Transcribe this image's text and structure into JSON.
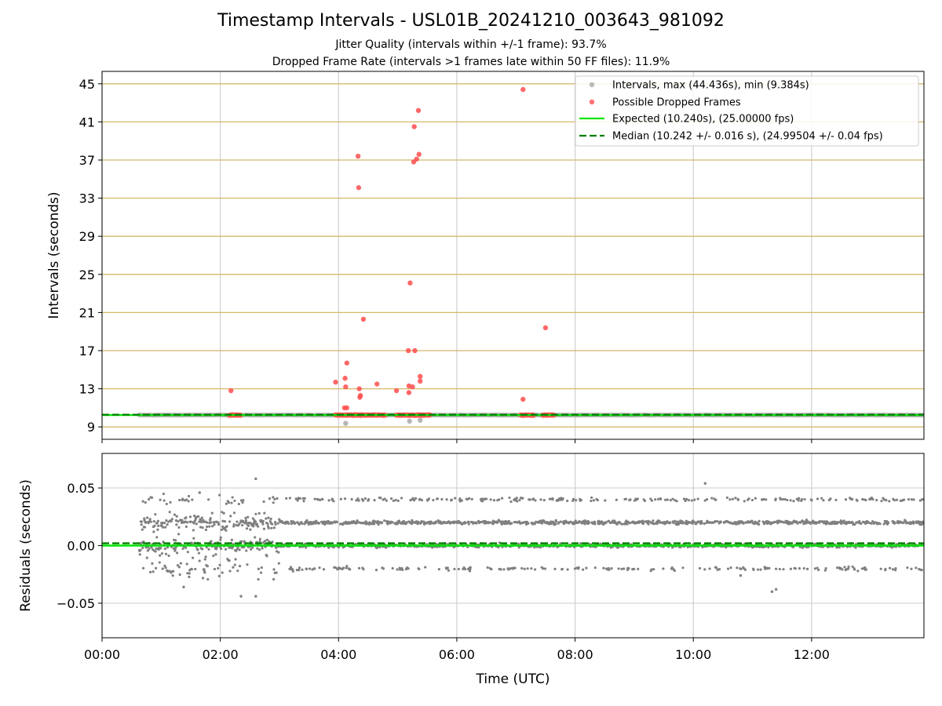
{
  "figure": {
    "title": "Timestamp Intervals - USL01B_20241210_003643_981092",
    "subtitle_1": "Jitter Quality (intervals within +/-1 frame): 93.7%",
    "subtitle_2": "Dropped Frame Rate (intervals >1 frames late within 50 FF files): 11.9%"
  },
  "chart_data": [
    {
      "type": "scatter",
      "ylabel": "Intervals (seconds)",
      "xlim": [
        0.0,
        13.9
      ],
      "ylim": [
        7.7,
        46.3
      ],
      "yticks": [
        9,
        13,
        17,
        21,
        25,
        29,
        33,
        37,
        41,
        45
      ],
      "ytick_labels": [
        "9",
        "13",
        "17",
        "21",
        "25",
        "29",
        "33",
        "37",
        "41",
        "45"
      ],
      "xticks": [
        0,
        2,
        4,
        6,
        8,
        10,
        12
      ],
      "grid": true,
      "legend_position": "upper-right",
      "legend": [
        "Intervals, max (44.436s), min (9.384s)",
        "Possible Dropped Frames",
        "Expected (10.240s), (25.00000 fps)",
        "Median (10.242 +/- 0.016 s), (24.99504 +/- 0.04 fps)"
      ],
      "series": [
        {
          "name": "Intervals, max (44.436s), min (9.384s)",
          "color": "#a9a9a9",
          "x_range": [
            0.63,
            13.9
          ],
          "typical_value": 10.24,
          "outlier_points": [
            [
              4.12,
              9.38
            ],
            [
              5.2,
              9.6
            ],
            [
              5.38,
              9.7
            ]
          ]
        },
        {
          "name": "Possible Dropped Frames",
          "color": "#ff4d4d",
          "clusters": [
            {
              "x_range": [
                2.15,
                2.35
              ],
              "y": 10.24
            },
            {
              "x_range": [
                3.95,
                4.8
              ],
              "y": 10.24
            },
            {
              "x_range": [
                4.98,
                5.55
              ],
              "y": 10.24
            },
            {
              "x_range": [
                7.08,
                7.3
              ],
              "y": 10.24
            },
            {
              "x_range": [
                7.45,
                7.65
              ],
              "y": 10.24
            }
          ],
          "points": [
            [
              2.18,
              12.8
            ],
            [
              3.95,
              13.7
            ],
            [
              4.11,
              14.1
            ],
            [
              4.12,
              13.2
            ],
            [
              4.14,
              15.7
            ],
            [
              4.1,
              11.0
            ],
            [
              4.14,
              11.0
            ],
            [
              4.33,
              37.4
            ],
            [
              4.34,
              34.1
            ],
            [
              4.35,
              13.0
            ],
            [
              4.36,
              12.1
            ],
            [
              4.37,
              12.3
            ],
            [
              4.42,
              20.3
            ],
            [
              4.65,
              13.5
            ],
            [
              4.98,
              12.8
            ],
            [
              5.18,
              17.0
            ],
            [
              5.19,
              13.3
            ],
            [
              5.19,
              12.6
            ],
            [
              5.21,
              24.1
            ],
            [
              5.25,
              13.2
            ],
            [
              5.27,
              36.8
            ],
            [
              5.28,
              40.5
            ],
            [
              5.29,
              17.0
            ],
            [
              5.32,
              37.1
            ],
            [
              5.35,
              42.2
            ],
            [
              5.36,
              37.6
            ],
            [
              5.38,
              14.3
            ],
            [
              5.38,
              13.8
            ],
            [
              7.12,
              44.4
            ],
            [
              7.12,
              11.9
            ],
            [
              7.5,
              19.4
            ]
          ]
        },
        {
          "name": "Expected (10.240s), (25.00000 fps)",
          "color": "#00e600",
          "y": 10.24
        },
        {
          "name": "Median (10.242 +/- 0.016 s), (24.99504 +/- 0.04 fps)",
          "color": "#008000",
          "style": "dashed",
          "y": 10.242
        }
      ]
    },
    {
      "type": "scatter",
      "xlabel": "Time (UTC)",
      "ylabel": "Residuals (seconds)",
      "xlim": [
        0.0,
        13.9
      ],
      "ylim": [
        -0.08,
        0.08
      ],
      "yticks": [
        -0.05,
        0.0,
        0.05
      ],
      "ytick_labels": [
        "−0.05",
        "0.00",
        "0.05"
      ],
      "xticks": [
        0,
        2,
        4,
        6,
        8,
        10,
        12
      ],
      "xtick_labels": [
        "00:00",
        "02:00",
        "04:00",
        "06:00",
        "08:00",
        "10:00",
        "12:00"
      ],
      "grid": true,
      "series": [
        {
          "name": "residuals",
          "color": "#808080",
          "x_range": [
            0.63,
            13.9
          ],
          "bands": [
            0.04,
            0.02,
            0.0,
            -0.02
          ],
          "high_scatter_until_x": 3.0,
          "outlier_points": [
            [
              2.6,
              0.058
            ],
            [
              1.65,
              0.046
            ],
            [
              10.2,
              0.054
            ],
            [
              1.38,
              -0.036
            ],
            [
              2.35,
              -0.044
            ],
            [
              2.6,
              -0.044
            ],
            [
              11.33,
              -0.04
            ],
            [
              11.4,
              -0.038
            ],
            [
              10.8,
              -0.026
            ]
          ]
        },
        {
          "name": "expected",
          "color": "#00e600",
          "y": 0.0
        },
        {
          "name": "median",
          "color": "#008000",
          "style": "dashed",
          "y": 0.002
        }
      ]
    }
  ]
}
